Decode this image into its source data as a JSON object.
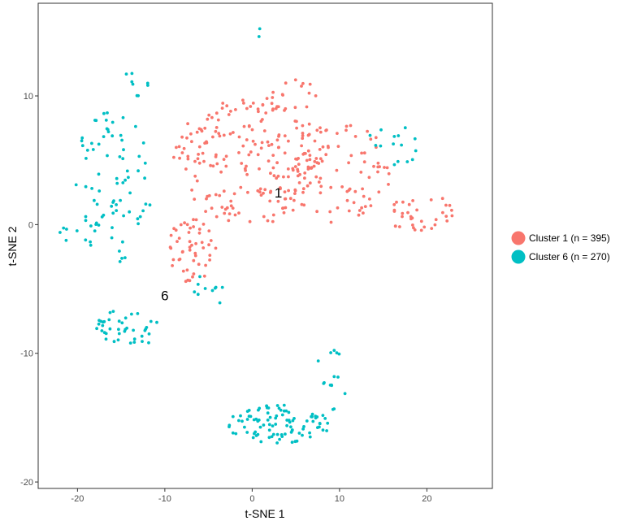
{
  "chart_data": {
    "type": "scatter",
    "title": "",
    "xlabel": "t-SNE 1",
    "ylabel": "t-SNE 2",
    "xlim": [
      -24.5,
      27.5
    ],
    "ylim": [
      -20.5,
      17.2
    ],
    "x_ticks": [
      -20,
      -10,
      0,
      10,
      20
    ],
    "y_ticks": [
      -20,
      -10,
      0,
      10
    ],
    "x_tick_labels": [
      "-20",
      "-10",
      "0",
      "10",
      "20"
    ],
    "y_tick_labels": [
      "-20",
      "-10",
      "0",
      "10"
    ],
    "grid": false,
    "legend_position": "right",
    "annotations": [
      {
        "text": "1",
        "x": 3,
        "y": 2.5
      },
      {
        "text": "6",
        "x": -10,
        "y": -5.5
      }
    ],
    "series": [
      {
        "name": "Cluster 1 (n = 395)",
        "color": "#F8766D",
        "clusters": [
          {
            "cx": 0,
            "cy": 5,
            "rx": 9,
            "ry": 5,
            "n": 210
          },
          {
            "cx": 10,
            "cy": 4,
            "rx": 6,
            "ry": 4,
            "n": 80
          },
          {
            "cx": 19,
            "cy": 1,
            "rx": 4,
            "ry": 1.5,
            "n": 35
          },
          {
            "cx": -7,
            "cy": -2,
            "rx": 3,
            "ry": 2.5,
            "n": 50
          },
          {
            "cx": 3,
            "cy": 10,
            "rx": 5,
            "ry": 1.5,
            "n": 20
          }
        ]
      },
      {
        "name": "Cluster 6 (n = 270)",
        "color": "#00BFC4",
        "clusters": [
          {
            "cx": -16,
            "cy": 3,
            "rx": 4.5,
            "ry": 6,
            "n": 80
          },
          {
            "cx": -14,
            "cy": -8,
            "rx": 4,
            "ry": 1.5,
            "n": 40
          },
          {
            "cx": 3,
            "cy": -15.5,
            "rx": 6,
            "ry": 1.5,
            "n": 95
          },
          {
            "cx": 9,
            "cy": -12,
            "rx": 2,
            "ry": 2.5,
            "n": 15
          },
          {
            "cx": -5,
            "cy": -5,
            "rx": 2,
            "ry": 1.5,
            "n": 10
          },
          {
            "cx": 16,
            "cy": 6,
            "rx": 3,
            "ry": 2.5,
            "n": 15
          },
          {
            "cx": 0.5,
            "cy": 15,
            "rx": 0.5,
            "ry": 0.5,
            "n": 2
          },
          {
            "cx": -13,
            "cy": 11,
            "rx": 2,
            "ry": 1,
            "n": 8
          },
          {
            "cx": -21,
            "cy": -1,
            "rx": 1.5,
            "ry": 1,
            "n": 5
          }
        ]
      }
    ]
  }
}
